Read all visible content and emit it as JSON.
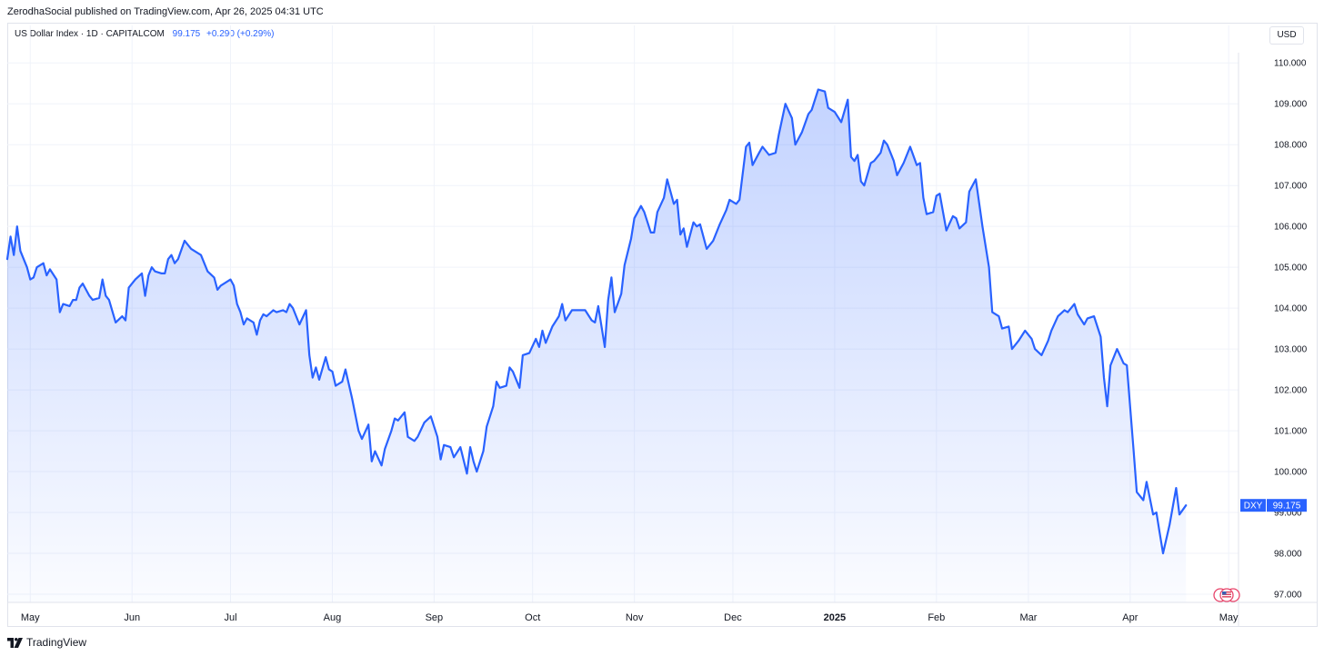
{
  "header": {
    "publisher_text": "ZerodhaSocial published on TradingView.com, Apr 26, 2025 04:31 UTC"
  },
  "legend": {
    "symbol": "US Dollar Index · 1D · CAPITALCOM",
    "last": "99.175",
    "change": "+0.290 (+0.29%)"
  },
  "currency_button": "USD",
  "footer": {
    "brand": "TradingView"
  },
  "colors": {
    "line": "#2962ff",
    "area_top": "#2962ff",
    "grid": "#f0f3fa",
    "axis_text": "#131722",
    "label_bg": "#2962ff"
  },
  "icons": [
    "tradingview-logo-icon",
    "us-flag-icon",
    "events-icon"
  ],
  "chart_data": {
    "type": "area",
    "title": "US Dollar Index · 1D · CAPITALCOM",
    "xlabel": "",
    "ylabel": "",
    "x_range": [
      "2024-04-24",
      "2025-05-04"
    ],
    "ylim": [
      96.8,
      110.25
    ],
    "y_ticks": [
      97,
      98,
      99,
      100,
      101,
      102,
      103,
      104,
      105,
      106,
      107,
      108,
      109,
      110
    ],
    "y_tick_labels": [
      "97.000",
      "98.000",
      "99.000",
      "100.000",
      "101.000",
      "102.000",
      "103.000",
      "104.000",
      "105.000",
      "106.000",
      "107.000",
      "108.000",
      "109.000",
      "110.000"
    ],
    "x_ticks": [
      {
        "date": "2024-05-01",
        "label": "May"
      },
      {
        "date": "2024-06-01",
        "label": "Jun"
      },
      {
        "date": "2024-07-01",
        "label": "Jul"
      },
      {
        "date": "2024-08-01",
        "label": "Aug"
      },
      {
        "date": "2024-09-01",
        "label": "Sep"
      },
      {
        "date": "2024-10-01",
        "label": "Oct"
      },
      {
        "date": "2024-11-01",
        "label": "Nov"
      },
      {
        "date": "2024-12-01",
        "label": "Dec"
      },
      {
        "date": "2025-01-01",
        "label": "2025",
        "bold": true
      },
      {
        "date": "2025-02-01",
        "label": "Feb"
      },
      {
        "date": "2025-03-01",
        "label": "Mar"
      },
      {
        "date": "2025-04-01",
        "label": "Apr"
      },
      {
        "date": "2025-05-01",
        "label": "May"
      }
    ],
    "grid": true,
    "price_label": {
      "symbol": "DXY",
      "value": "99.175"
    },
    "series": [
      {
        "name": "DXY",
        "points": [
          [
            "2024-04-24",
            105.2
          ],
          [
            "2024-04-25",
            105.75
          ],
          [
            "2024-04-26",
            105.3
          ],
          [
            "2024-04-27",
            106.0
          ],
          [
            "2024-04-28",
            105.4
          ],
          [
            "2024-04-30",
            105.0
          ],
          [
            "2024-05-01",
            104.7
          ],
          [
            "2024-05-02",
            104.75
          ],
          [
            "2024-05-03",
            105.0
          ],
          [
            "2024-05-05",
            105.1
          ],
          [
            "2024-05-06",
            104.8
          ],
          [
            "2024-05-07",
            104.95
          ],
          [
            "2024-05-09",
            104.7
          ],
          [
            "2024-05-10",
            103.9
          ],
          [
            "2024-05-11",
            104.1
          ],
          [
            "2024-05-13",
            104.05
          ],
          [
            "2024-05-14",
            104.2
          ],
          [
            "2024-05-15",
            104.2
          ],
          [
            "2024-05-16",
            104.5
          ],
          [
            "2024-05-17",
            104.6
          ],
          [
            "2024-05-19",
            104.3
          ],
          [
            "2024-05-20",
            104.2
          ],
          [
            "2024-05-22",
            104.25
          ],
          [
            "2024-05-23",
            104.7
          ],
          [
            "2024-05-24",
            104.3
          ],
          [
            "2024-05-25",
            104.2
          ],
          [
            "2024-05-27",
            103.65
          ],
          [
            "2024-05-29",
            103.8
          ],
          [
            "2024-05-30",
            103.7
          ],
          [
            "2024-05-31",
            104.5
          ],
          [
            "2024-06-02",
            104.7
          ],
          [
            "2024-06-04",
            104.85
          ],
          [
            "2024-06-05",
            104.3
          ],
          [
            "2024-06-06",
            104.8
          ],
          [
            "2024-06-07",
            105.0
          ],
          [
            "2024-06-08",
            104.9
          ],
          [
            "2024-06-10",
            104.85
          ],
          [
            "2024-06-11",
            104.85
          ],
          [
            "2024-06-12",
            105.2
          ],
          [
            "2024-06-13",
            105.3
          ],
          [
            "2024-06-14",
            105.1
          ],
          [
            "2024-06-15",
            105.2
          ],
          [
            "2024-06-17",
            105.65
          ],
          [
            "2024-06-19",
            105.45
          ],
          [
            "2024-06-20",
            105.4
          ],
          [
            "2024-06-22",
            105.3
          ],
          [
            "2024-06-24",
            104.9
          ],
          [
            "2024-06-26",
            104.75
          ],
          [
            "2024-06-27",
            104.45
          ],
          [
            "2024-06-28",
            104.55
          ],
          [
            "2024-07-01",
            104.7
          ],
          [
            "2024-07-02",
            104.55
          ],
          [
            "2024-07-03",
            104.1
          ],
          [
            "2024-07-04",
            103.9
          ],
          [
            "2024-07-05",
            103.6
          ],
          [
            "2024-07-06",
            103.75
          ],
          [
            "2024-07-08",
            103.65
          ],
          [
            "2024-07-09",
            103.35
          ],
          [
            "2024-07-10",
            103.7
          ],
          [
            "2024-07-11",
            103.85
          ],
          [
            "2024-07-12",
            103.8
          ],
          [
            "2024-07-14",
            103.95
          ],
          [
            "2024-07-15",
            103.9
          ],
          [
            "2024-07-17",
            103.95
          ],
          [
            "2024-07-18",
            103.9
          ],
          [
            "2024-07-19",
            104.1
          ],
          [
            "2024-07-20",
            104.0
          ],
          [
            "2024-07-22",
            103.6
          ],
          [
            "2024-07-24",
            103.95
          ],
          [
            "2024-07-25",
            102.85
          ],
          [
            "2024-07-26",
            102.3
          ],
          [
            "2024-07-27",
            102.55
          ],
          [
            "2024-07-28",
            102.25
          ],
          [
            "2024-07-30",
            102.8
          ],
          [
            "2024-07-31",
            102.5
          ],
          [
            "2024-08-01",
            102.45
          ],
          [
            "2024-08-02",
            102.1
          ],
          [
            "2024-08-04",
            102.2
          ],
          [
            "2024-08-05",
            102.5
          ],
          [
            "2024-08-07",
            101.8
          ],
          [
            "2024-08-09",
            101.0
          ],
          [
            "2024-08-10",
            100.8
          ],
          [
            "2024-08-12",
            101.15
          ],
          [
            "2024-08-13",
            100.25
          ],
          [
            "2024-08-14",
            100.5
          ],
          [
            "2024-08-16",
            100.15
          ],
          [
            "2024-08-17",
            100.55
          ],
          [
            "2024-08-19",
            101.0
          ],
          [
            "2024-08-20",
            101.3
          ],
          [
            "2024-08-21",
            101.25
          ],
          [
            "2024-08-23",
            101.45
          ],
          [
            "2024-08-24",
            100.85
          ],
          [
            "2024-08-26",
            100.75
          ],
          [
            "2024-08-27",
            100.85
          ],
          [
            "2024-08-29",
            101.2
          ],
          [
            "2024-08-31",
            101.35
          ],
          [
            "2024-09-02",
            100.85
          ],
          [
            "2024-09-03",
            100.3
          ],
          [
            "2024-09-04",
            100.65
          ],
          [
            "2024-09-06",
            100.6
          ],
          [
            "2024-09-07",
            100.35
          ],
          [
            "2024-09-09",
            100.6
          ],
          [
            "2024-09-11",
            99.95
          ],
          [
            "2024-09-12",
            100.6
          ],
          [
            "2024-09-13",
            100.25
          ],
          [
            "2024-09-14",
            100.0
          ],
          [
            "2024-09-16",
            100.5
          ],
          [
            "2024-09-17",
            101.1
          ],
          [
            "2024-09-19",
            101.6
          ],
          [
            "2024-09-20",
            102.2
          ],
          [
            "2024-09-21",
            102.05
          ],
          [
            "2024-09-23",
            102.1
          ],
          [
            "2024-09-24",
            102.55
          ],
          [
            "2024-09-25",
            102.45
          ],
          [
            "2024-09-27",
            102.05
          ],
          [
            "2024-09-28",
            102.85
          ],
          [
            "2024-09-30",
            102.9
          ],
          [
            "2024-10-02",
            103.25
          ],
          [
            "2024-10-03",
            103.05
          ],
          [
            "2024-10-04",
            103.45
          ],
          [
            "2024-10-05",
            103.15
          ],
          [
            "2024-10-07",
            103.55
          ],
          [
            "2024-10-09",
            103.8
          ],
          [
            "2024-10-10",
            104.1
          ],
          [
            "2024-10-11",
            103.7
          ],
          [
            "2024-10-13",
            103.95
          ],
          [
            "2024-10-15",
            103.95
          ],
          [
            "2024-10-17",
            103.95
          ],
          [
            "2024-10-19",
            103.7
          ],
          [
            "2024-10-20",
            103.65
          ],
          [
            "2024-10-21",
            104.05
          ],
          [
            "2024-10-23",
            103.05
          ],
          [
            "2024-10-24",
            104.2
          ],
          [
            "2024-10-25",
            104.75
          ],
          [
            "2024-10-26",
            103.9
          ],
          [
            "2024-10-28",
            104.35
          ],
          [
            "2024-10-29",
            105.05
          ],
          [
            "2024-10-31",
            105.7
          ],
          [
            "2024-11-01",
            106.2
          ],
          [
            "2024-11-03",
            106.5
          ],
          [
            "2024-11-04",
            106.35
          ],
          [
            "2024-11-06",
            105.85
          ],
          [
            "2024-11-07",
            105.85
          ],
          [
            "2024-11-08",
            106.35
          ],
          [
            "2024-11-10",
            106.7
          ],
          [
            "2024-11-11",
            107.15
          ],
          [
            "2024-11-13",
            106.55
          ],
          [
            "2024-11-14",
            106.65
          ],
          [
            "2024-11-15",
            105.8
          ],
          [
            "2024-11-16",
            105.95
          ],
          [
            "2024-11-17",
            105.5
          ],
          [
            "2024-11-19",
            106.1
          ],
          [
            "2024-11-20",
            106.0
          ],
          [
            "2024-11-21",
            106.05
          ],
          [
            "2024-11-23",
            105.45
          ],
          [
            "2024-11-25",
            105.65
          ],
          [
            "2024-11-27",
            106.05
          ],
          [
            "2024-11-29",
            106.4
          ],
          [
            "2024-11-30",
            106.65
          ],
          [
            "2024-12-02",
            106.55
          ],
          [
            "2024-12-03",
            106.65
          ],
          [
            "2024-12-05",
            107.95
          ],
          [
            "2024-12-06",
            108.05
          ],
          [
            "2024-12-07",
            107.5
          ],
          [
            "2024-12-09",
            107.8
          ],
          [
            "2024-12-10",
            107.95
          ],
          [
            "2024-12-12",
            107.75
          ],
          [
            "2024-12-14",
            107.8
          ],
          [
            "2024-12-15",
            108.25
          ],
          [
            "2024-12-17",
            109.0
          ],
          [
            "2024-12-19",
            108.65
          ],
          [
            "2024-12-20",
            108.0
          ],
          [
            "2024-12-22",
            108.3
          ],
          [
            "2024-12-24",
            108.75
          ],
          [
            "2024-12-25",
            108.85
          ],
          [
            "2024-12-27",
            109.35
          ],
          [
            "2024-12-29",
            109.3
          ],
          [
            "2024-12-30",
            108.9
          ],
          [
            "2025-01-01",
            108.8
          ],
          [
            "2025-01-03",
            108.55
          ],
          [
            "2025-01-05",
            109.1
          ],
          [
            "2025-01-06",
            107.7
          ],
          [
            "2025-01-07",
            107.6
          ],
          [
            "2025-01-08",
            107.75
          ],
          [
            "2025-01-09",
            107.1
          ],
          [
            "2025-01-10",
            107.0
          ],
          [
            "2025-01-12",
            107.55
          ],
          [
            "2025-01-13",
            107.6
          ],
          [
            "2025-01-15",
            107.8
          ],
          [
            "2025-01-16",
            108.1
          ],
          [
            "2025-01-17",
            108.0
          ],
          [
            "2025-01-19",
            107.6
          ],
          [
            "2025-01-20",
            107.25
          ],
          [
            "2025-01-22",
            107.55
          ],
          [
            "2025-01-24",
            107.95
          ],
          [
            "2025-01-26",
            107.5
          ],
          [
            "2025-01-27",
            107.55
          ],
          [
            "2025-01-28",
            106.7
          ],
          [
            "2025-01-29",
            106.3
          ],
          [
            "2025-01-31",
            106.35
          ],
          [
            "2025-02-01",
            106.75
          ],
          [
            "2025-02-02",
            106.8
          ],
          [
            "2025-02-04",
            105.9
          ],
          [
            "2025-02-06",
            106.25
          ],
          [
            "2025-02-07",
            106.2
          ],
          [
            "2025-02-08",
            105.95
          ],
          [
            "2025-02-10",
            106.1
          ],
          [
            "2025-02-11",
            106.85
          ],
          [
            "2025-02-13",
            107.15
          ],
          [
            "2025-02-15",
            106.0
          ],
          [
            "2025-02-17",
            105.0
          ],
          [
            "2025-02-18",
            103.9
          ],
          [
            "2025-02-20",
            103.8
          ],
          [
            "2025-02-21",
            103.5
          ],
          [
            "2025-02-23",
            103.55
          ],
          [
            "2025-02-24",
            103.0
          ],
          [
            "2025-02-26",
            103.2
          ],
          [
            "2025-02-28",
            103.45
          ],
          [
            "2025-03-02",
            103.25
          ],
          [
            "2025-03-03",
            103.0
          ],
          [
            "2025-03-05",
            102.85
          ],
          [
            "2025-03-07",
            103.2
          ],
          [
            "2025-03-08",
            103.45
          ],
          [
            "2025-03-10",
            103.8
          ],
          [
            "2025-03-12",
            103.95
          ],
          [
            "2025-03-13",
            103.9
          ],
          [
            "2025-03-15",
            104.1
          ],
          [
            "2025-03-16",
            103.85
          ],
          [
            "2025-03-18",
            103.6
          ],
          [
            "2025-03-19",
            103.75
          ],
          [
            "2025-03-21",
            103.8
          ],
          [
            "2025-03-23",
            103.3
          ],
          [
            "2025-03-24",
            102.3
          ],
          [
            "2025-03-25",
            101.6
          ],
          [
            "2025-03-26",
            102.6
          ],
          [
            "2025-03-28",
            103.0
          ],
          [
            "2025-03-30",
            102.65
          ],
          [
            "2025-03-31",
            102.6
          ],
          [
            "2025-04-02",
            100.55
          ],
          [
            "2025-04-03",
            99.5
          ],
          [
            "2025-04-05",
            99.3
          ],
          [
            "2025-04-06",
            99.75
          ],
          [
            "2025-04-08",
            98.95
          ],
          [
            "2025-04-09",
            99.0
          ],
          [
            "2025-04-10",
            98.5
          ],
          [
            "2025-04-11",
            98.0
          ],
          [
            "2025-04-13",
            98.7
          ],
          [
            "2025-04-15",
            99.6
          ],
          [
            "2025-04-16",
            98.95
          ],
          [
            "2025-04-18",
            99.175
          ]
        ]
      }
    ]
  }
}
